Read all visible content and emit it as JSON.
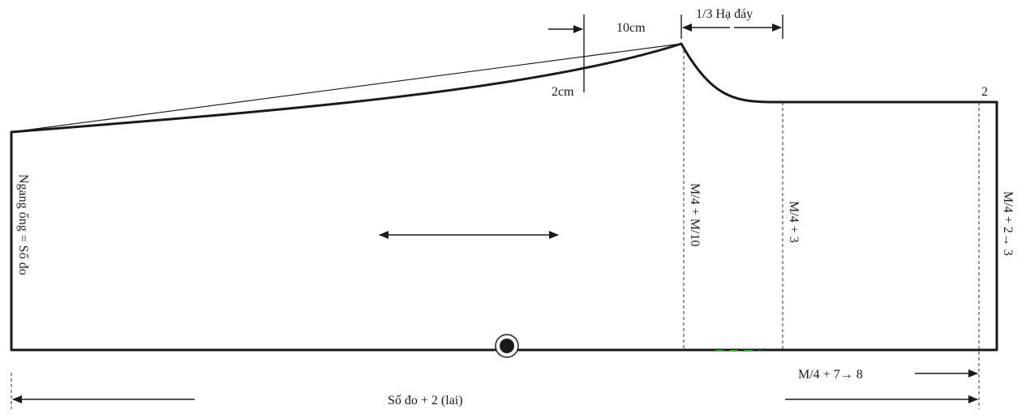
{
  "labels": {
    "ten_cm": "10cm",
    "one_third_ha_day": "1/3 Hạ đáy",
    "two_cm": "2cm",
    "corner_two": "2",
    "left_side": "Ngang ống = Số đo",
    "crotch_line": "M/4 + M/10",
    "hip_line": "M/4 + 3",
    "right_side": "M/4 + 2→ 3",
    "bottom_right": "M/4 + 7→ 8",
    "bottom_total": "Số đo + 2 (lai)"
  },
  "colors": {
    "line": "#1a1a1a",
    "marker_accent": "#3fae3f"
  }
}
